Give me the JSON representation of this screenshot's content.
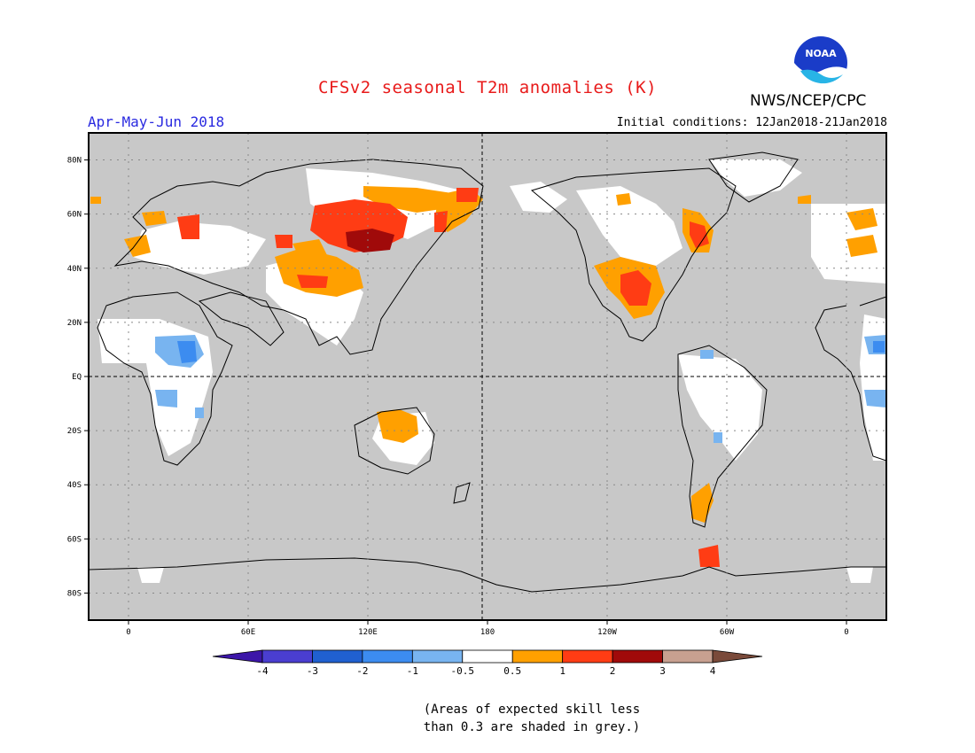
{
  "title": "CFSv2 seasonal T2m anomalies (K)",
  "season": "Apr-May-Jun 2018",
  "initial_conditions": "Initial conditions: 12Jan2018-21Jan2018",
  "organization": "NWS/NCEP/CPC",
  "logo_text": "NOAA",
  "note_line1": "(Areas of expected skill less",
  "note_line2": "than 0.3 are shaded in grey.)",
  "map": {
    "lon_ticks": [
      {
        "lon": 0,
        "label": "0"
      },
      {
        "lon": 60,
        "label": "60E"
      },
      {
        "lon": 120,
        "label": "120E"
      },
      {
        "lon": 180,
        "label": "180"
      },
      {
        "lon": 240,
        "label": "120W"
      },
      {
        "lon": 300,
        "label": "60W"
      },
      {
        "lon": 360,
        "label": "0"
      }
    ],
    "lat_ticks": [
      {
        "lat": 80,
        "label": "80N"
      },
      {
        "lat": 60,
        "label": "60N"
      },
      {
        "lat": 40,
        "label": "40N"
      },
      {
        "lat": 20,
        "label": "20N"
      },
      {
        "lat": 0,
        "label": "EQ"
      },
      {
        "lat": -20,
        "label": "20S"
      },
      {
        "lat": -40,
        "label": "40S"
      },
      {
        "lat": -60,
        "label": "60S"
      },
      {
        "lat": -80,
        "label": "80S"
      }
    ],
    "skill_mask_color": "#c8c8c8",
    "anomaly_regions": [
      {
        "name": "Siberia warm core",
        "lon": 95,
        "lat": 55,
        "value": 2.5
      },
      {
        "name": "Lake Baikal region",
        "lon": 105,
        "lat": 52,
        "value": 3.2
      },
      {
        "name": "Central Asia",
        "lon": 90,
        "lat": 37,
        "value": 1.2
      },
      {
        "name": "Eastern Siberia",
        "lon": 160,
        "lat": 63,
        "value": 1.3
      },
      {
        "name": "Eastern Europe",
        "lon": 30,
        "lat": 55,
        "value": 1.2
      },
      {
        "name": "Scandinavia",
        "lon": 15,
        "lat": 60,
        "value": 0.8
      },
      {
        "name": "US Southwest",
        "lon": 253,
        "lat": 33,
        "value": 1.5
      },
      {
        "name": "Hudson Bay east",
        "lon": 285,
        "lat": 54,
        "value": 1.5
      },
      {
        "name": "Northern Australia",
        "lon": 135,
        "lat": -17,
        "value": 0.8
      },
      {
        "name": "Patagonia",
        "lon": 290,
        "lat": -42,
        "value": 0.8
      },
      {
        "name": "Antarctic Peninsula",
        "lon": 300,
        "lat": -67,
        "value": 1.5
      },
      {
        "name": "Central Africa",
        "lon": 22,
        "lat": 8,
        "value": -0.8
      },
      {
        "name": "Southern Africa",
        "lon": 15,
        "lat": -10,
        "value": -0.7
      },
      {
        "name": "Northern South America",
        "lon": 295,
        "lat": 7,
        "value": -0.6
      }
    ]
  },
  "colorbar": {
    "colors": [
      "#3c16a8",
      "#4a3ed0",
      "#2060d0",
      "#3c8cf0",
      "#78b4f0",
      "#ffffff",
      "#ffa000",
      "#ff3c14",
      "#a00a0a",
      "#c8a090",
      "#7a4a3a"
    ],
    "labels": [
      "-4",
      "-3",
      "-2",
      "-1",
      "-0.5",
      "0.5",
      "1",
      "2",
      "3",
      "4"
    ]
  }
}
